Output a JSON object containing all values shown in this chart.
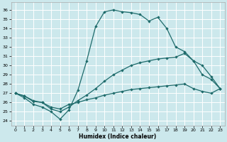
{
  "xlabel": "Humidex (Indice chaleur)",
  "bg_color": "#cce8ec",
  "grid_color": "#ffffff",
  "line_color": "#1e6b6b",
  "xlim": [
    -0.5,
    23.5
  ],
  "ylim": [
    23.5,
    36.8
  ],
  "yticks": [
    24,
    25,
    26,
    27,
    28,
    29,
    30,
    31,
    32,
    33,
    34,
    35,
    36
  ],
  "xticks": [
    0,
    1,
    2,
    3,
    4,
    5,
    6,
    7,
    8,
    9,
    10,
    11,
    12,
    13,
    14,
    15,
    16,
    17,
    18,
    19,
    20,
    21,
    22,
    23
  ],
  "line1_x": [
    0,
    1,
    2,
    3,
    4,
    5,
    6,
    7,
    8,
    9,
    10,
    11,
    12,
    13,
    14,
    15,
    16,
    17,
    18,
    19,
    20,
    21,
    22,
    23
  ],
  "line1_y": [
    27.0,
    26.7,
    26.2,
    26.0,
    25.5,
    25.3,
    25.8,
    26.0,
    26.3,
    26.5,
    26.8,
    27.0,
    27.2,
    27.4,
    27.5,
    27.6,
    27.7,
    27.8,
    27.9,
    28.0,
    27.5,
    27.2,
    27.0,
    27.5
  ],
  "line2_x": [
    0,
    1,
    2,
    3,
    4,
    5,
    6,
    7,
    8,
    9,
    10,
    11,
    12,
    13,
    14,
    15,
    16,
    17,
    18,
    19,
    20,
    21,
    22,
    23
  ],
  "line2_y": [
    27.0,
    26.7,
    26.1,
    26.0,
    25.3,
    25.0,
    25.5,
    26.2,
    26.8,
    27.5,
    28.3,
    29.0,
    29.5,
    30.0,
    30.3,
    30.5,
    30.7,
    30.8,
    30.9,
    31.3,
    30.5,
    29.0,
    28.5,
    27.5
  ],
  "line3_x": [
    0,
    1,
    2,
    3,
    4,
    5,
    6,
    7,
    8,
    9,
    10,
    11,
    12,
    13,
    14,
    15,
    16,
    17,
    18,
    19,
    20,
    21,
    22,
    23
  ],
  "line3_y": [
    27.0,
    26.5,
    25.8,
    25.5,
    25.0,
    24.2,
    25.2,
    27.3,
    30.5,
    34.2,
    35.8,
    36.0,
    35.8,
    35.7,
    35.5,
    34.8,
    35.2,
    34.0,
    32.0,
    31.5,
    30.5,
    30.0,
    28.8,
    27.5
  ]
}
